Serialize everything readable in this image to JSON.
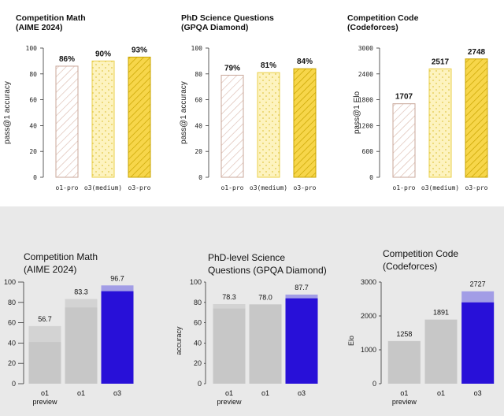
{
  "colors": {
    "o1_pro_stroke": "#c9a79a",
    "o3_medium_fill": "#fdf3bf",
    "o3_medium_stroke": "#e9cf4a",
    "o3_pro_fill": "#f7d64a",
    "o3_pro_stroke": "#c9a400",
    "gray_bar": "#c7c7c7",
    "gray_bar_light": "#d3d3d3",
    "blue_bar": "#2810d8",
    "blue_bar_light": "#a29de6",
    "bottom_bg": "#e9e9e9"
  },
  "top_charts": [
    {
      "title": [
        "Competition Math",
        "(AIME 2024)"
      ],
      "ylabel": "pass@1 accuracy",
      "yticks": [
        "100",
        "80",
        "60",
        "40",
        "20",
        "0"
      ],
      "ytick_values": [
        100,
        80,
        60,
        40,
        20,
        0
      ],
      "categories": [
        "o1-pro",
        "o3(medium)",
        "o3-pro"
      ],
      "values": [
        86,
        90,
        93
      ],
      "value_labels": [
        "86%",
        "90%",
        "93%"
      ],
      "ylim": [
        0,
        100
      ]
    },
    {
      "title": [
        "PhD Science Questions",
        "(GPQA Diamond)"
      ],
      "ylabel": "pass@1 accuracy",
      "yticks": [
        "100",
        "80",
        "60",
        "40",
        "20",
        "0"
      ],
      "ytick_values": [
        100,
        80,
        60,
        40,
        20,
        0
      ],
      "categories": [
        "o1-pro",
        "o3(medium)",
        "o3-pro"
      ],
      "values": [
        79,
        81,
        84
      ],
      "value_labels": [
        "79%",
        "81%",
        "84%"
      ],
      "ylim": [
        0,
        100
      ]
    },
    {
      "title": [
        "Competition Code",
        "(Codeforces)"
      ],
      "ylabel": "pass@1 Elo",
      "yticks": [
        "3000",
        "2400",
        "1800",
        "1200",
        "600",
        "0"
      ],
      "ytick_values": [
        3000,
        2400,
        1800,
        1200,
        600,
        0
      ],
      "categories": [
        "o1-pro",
        "o3(medium)",
        "o3-pro"
      ],
      "values": [
        1707,
        2517,
        2748
      ],
      "value_labels": [
        "1707",
        "2517",
        "2748"
      ],
      "ylim": [
        0,
        3000
      ]
    }
  ],
  "bottom_charts": [
    {
      "title": [
        "Competition Math",
        "(AIME 2024)"
      ],
      "ylabel": "",
      "yticks": [
        "100",
        "80",
        "60",
        "40",
        "20",
        "0"
      ],
      "ytick_values": [
        100,
        80,
        60,
        40,
        20,
        0
      ],
      "categories": [
        [
          "o1",
          "preview"
        ],
        [
          "o1"
        ],
        [
          "o3"
        ]
      ],
      "values": [
        56.7,
        83.3,
        96.7
      ],
      "inner_values": [
        41,
        75,
        91
      ],
      "value_labels": [
        "56.7",
        "83.3",
        "96.7"
      ],
      "ylim": [
        0,
        100
      ]
    },
    {
      "title": [
        "PhD-level Science",
        "Questions (GPQA Diamond)"
      ],
      "ylabel": "accuracy",
      "yticks": [
        "100",
        "80",
        "60",
        "40",
        "20",
        "0"
      ],
      "ytick_values": [
        100,
        80,
        60,
        40,
        20,
        0
      ],
      "categories": [
        [
          "o1",
          "preview"
        ],
        [
          "o1"
        ],
        [
          "o3"
        ]
      ],
      "values": [
        78.3,
        78.0,
        87.7
      ],
      "inner_values": [
        74,
        78,
        84
      ],
      "value_labels": [
        "78.3",
        "78.0",
        "87.7"
      ],
      "ylim": [
        0,
        100
      ]
    },
    {
      "title": [
        "Competition Code",
        "(Codeforces)"
      ],
      "ylabel": "Elo",
      "yticks": [
        "3000",
        "2000",
        "1000",
        "0"
      ],
      "ytick_values": [
        3000,
        2000,
        1000,
        0
      ],
      "categories": [
        [
          "o1",
          "preview"
        ],
        [
          "o1"
        ],
        [
          "o3"
        ]
      ],
      "values": [
        1258,
        1891,
        2727
      ],
      "inner_values": [
        1258,
        1891,
        2400
      ],
      "value_labels": [
        "1258",
        "1891",
        "2727"
      ],
      "ylim": [
        0,
        3000
      ]
    }
  ],
  "chart_data": [
    {
      "type": "bar",
      "title": "Competition Math (AIME 2024)",
      "ylabel": "pass@1 accuracy",
      "categories": [
        "o1-pro",
        "o3(medium)",
        "o3-pro"
      ],
      "values": [
        86,
        90,
        93
      ],
      "ylim": [
        0,
        100
      ]
    },
    {
      "type": "bar",
      "title": "PhD Science Questions (GPQA Diamond)",
      "ylabel": "pass@1 accuracy",
      "categories": [
        "o1-pro",
        "o3(medium)",
        "o3-pro"
      ],
      "values": [
        79,
        81,
        84
      ],
      "ylim": [
        0,
        100
      ]
    },
    {
      "type": "bar",
      "title": "Competition Code (Codeforces)",
      "ylabel": "pass@1 Elo",
      "categories": [
        "o1-pro",
        "o3(medium)",
        "o3-pro"
      ],
      "values": [
        1707,
        2517,
        2748
      ],
      "ylim": [
        0,
        3000
      ]
    },
    {
      "type": "bar",
      "title": "Competition Math (AIME 2024)",
      "ylabel": "",
      "categories": [
        "o1 preview",
        "o1",
        "o3"
      ],
      "values": [
        56.7,
        83.3,
        96.7
      ],
      "ylim": [
        0,
        100
      ]
    },
    {
      "type": "bar",
      "title": "PhD-level Science Questions (GPQA Diamond)",
      "ylabel": "accuracy",
      "categories": [
        "o1 preview",
        "o1",
        "o3"
      ],
      "values": [
        78.3,
        78.0,
        87.7
      ],
      "ylim": [
        0,
        100
      ]
    },
    {
      "type": "bar",
      "title": "Competition Code (Codeforces)",
      "ylabel": "Elo",
      "categories": [
        "o1 preview",
        "o1",
        "o3"
      ],
      "values": [
        1258,
        1891,
        2727
      ],
      "ylim": [
        0,
        3000
      ]
    }
  ]
}
